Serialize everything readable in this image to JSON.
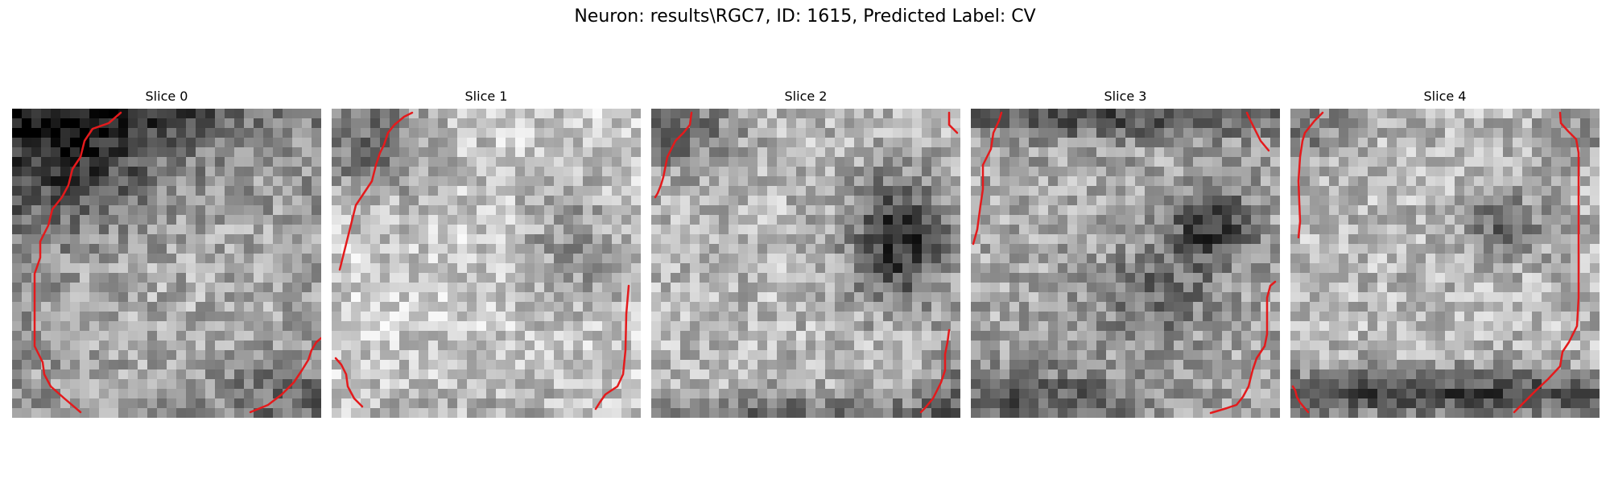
{
  "figure": {
    "title": "Neuron: results\\RGC7, ID: 1615, Predicted Label: CV"
  },
  "panels": [
    {
      "title": "Slice 0",
      "image": "grayscale-microscopy-slice",
      "contour_color": "#e41a1c"
    },
    {
      "title": "Slice 1",
      "image": "grayscale-microscopy-slice",
      "contour_color": "#e41a1c"
    },
    {
      "title": "Slice 2",
      "image": "grayscale-microscopy-slice",
      "contour_color": "#e41a1c"
    },
    {
      "title": "Slice 3",
      "image": "grayscale-microscopy-slice",
      "contour_color": "#e41a1c"
    },
    {
      "title": "Slice 4",
      "image": "grayscale-microscopy-slice",
      "contour_color": "#e41a1c"
    }
  ]
}
